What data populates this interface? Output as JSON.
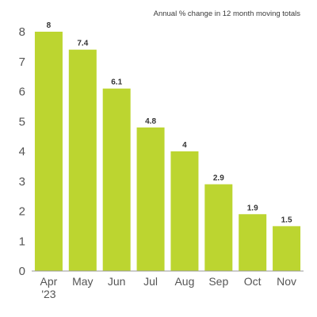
{
  "colors": {
    "bar": "#bcd530",
    "axis": "#999999",
    "grid": "#e6e6e6",
    "text": "#555555"
  },
  "chart_data": {
    "type": "bar",
    "title": "",
    "subtitle": "Annual % change in 12 month moving totals",
    "xlabel": "",
    "ylabel": "",
    "categories": [
      "Apr\n'23",
      "May",
      "Jun",
      "Jul",
      "Aug",
      "Sep",
      "Oct",
      "Nov"
    ],
    "values": [
      8,
      7.4,
      6.1,
      4.8,
      4,
      2.9,
      1.9,
      1.5
    ],
    "data_labels": [
      "8",
      "7.4",
      "6.1",
      "4.8",
      "4",
      "2.9",
      "1.9",
      "1.5"
    ],
    "yticks": [
      0,
      1,
      2,
      3,
      4,
      5,
      6,
      7,
      8
    ],
    "ylim": [
      0,
      8
    ],
    "grid": false,
    "legend": "none"
  }
}
